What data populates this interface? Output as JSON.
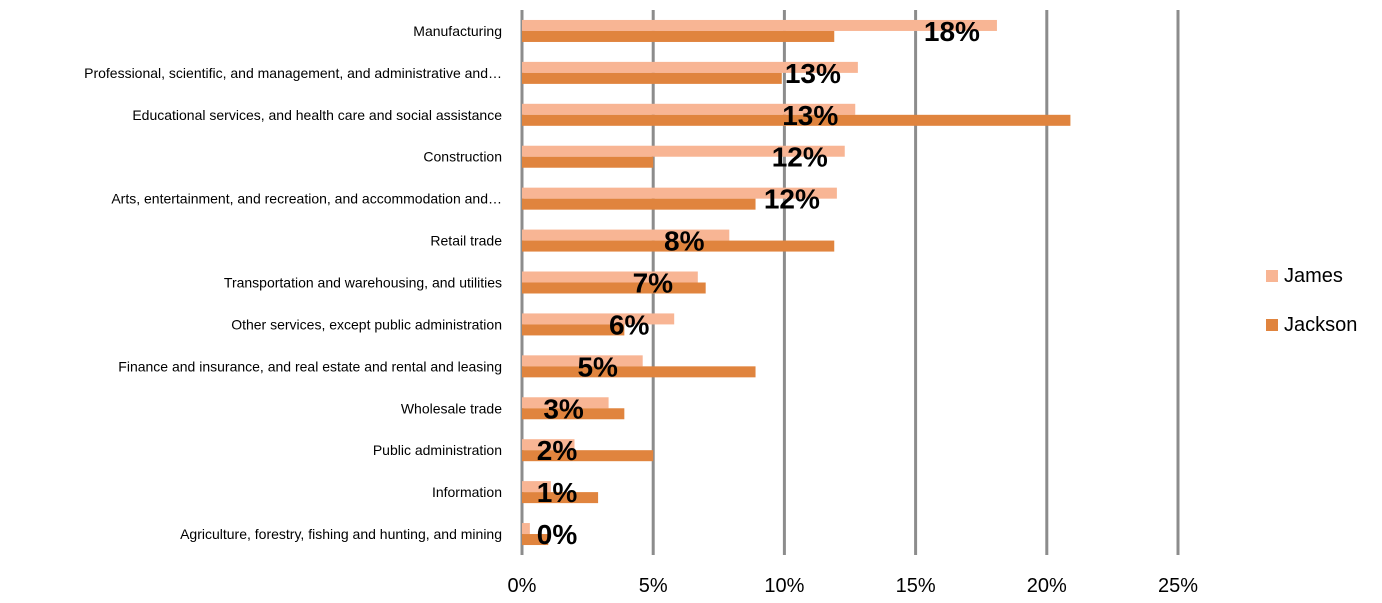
{
  "chart_data": {
    "type": "bar",
    "orientation": "horizontal",
    "categories": [
      "Manufacturing",
      "Professional, scientific, and management, and administrative and…",
      "Educational services, and health care and social assistance",
      "Construction",
      "Arts, entertainment, and recreation, and accommodation and…",
      "Retail trade",
      "Transportation and warehousing, and utilities",
      "Other services, except public administration",
      "Finance and insurance, and real estate and rental and leasing",
      "Wholesale trade",
      "Public administration",
      "Information",
      "Agriculture, forestry, fishing and hunting, and mining"
    ],
    "series": [
      {
        "name": "James",
        "color": "#f8b594",
        "values": [
          18.1,
          12.8,
          12.7,
          12.3,
          12.0,
          7.9,
          6.7,
          5.8,
          4.6,
          3.3,
          2.0,
          1.1,
          0.3
        ]
      },
      {
        "name": "Jackson",
        "color": "#e0843e",
        "values": [
          11.9,
          9.9,
          20.9,
          5.0,
          8.9,
          11.9,
          7.0,
          3.9,
          8.9,
          3.9,
          5.0,
          2.9,
          1.0
        ]
      }
    ],
    "data_labels": [
      "18%",
      "13%",
      "13%",
      "12%",
      "12%",
      "8%",
      "7%",
      "6%",
      "5%",
      "3%",
      "2%",
      "1%",
      "0%"
    ],
    "xlim": [
      0,
      25
    ],
    "xticks": [
      {
        "value": 0,
        "label": "0%"
      },
      {
        "value": 5,
        "label": "5%"
      },
      {
        "value": 10,
        "label": "10%"
      },
      {
        "value": 15,
        "label": "15%"
      },
      {
        "value": 20,
        "label": "20%"
      },
      {
        "value": 25,
        "label": "25%"
      }
    ],
    "grid": true,
    "gridline_color": "#8c8c8c",
    "legend_position": "right"
  }
}
